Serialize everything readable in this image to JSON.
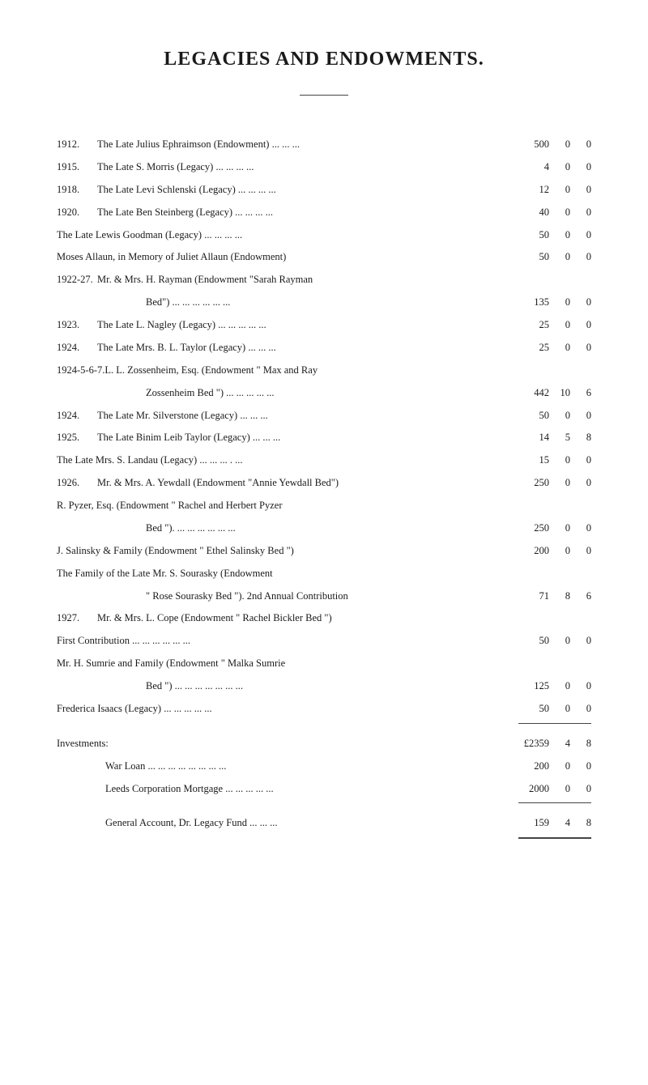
{
  "title": "LEGACIES AND ENDOWMENTS.",
  "entries": [
    {
      "year": "1912.",
      "text": "The Late Julius Ephraimson (Endowment)   ...   ...   ...",
      "l": "500",
      "s": "0",
      "d": "0"
    },
    {
      "year": "1915.",
      "text": "The Late S. Morris (Legacy)               ...   ...   ...   ...",
      "l": "4",
      "s": "0",
      "d": "0"
    },
    {
      "year": "1918.",
      "text": "The Late Levi Schlenski (Legacy)    ...   ...   ...   ...",
      "l": "12",
      "s": "0",
      "d": "0"
    },
    {
      "year": "1920.",
      "text": "The Late Ben Steinberg (Legacy)     ...   ...   ...   ...",
      "l": "40",
      "s": "0",
      "d": "0"
    },
    {
      "year": "",
      "text": "The Late Lewis Goodman (Legacy)    ...   ...   ...   ...",
      "l": "50",
      "s": "0",
      "d": "0"
    },
    {
      "year": "",
      "text": "Moses Allaun, in Memory of Juliet Allaun (Endowment)",
      "l": "50",
      "s": "0",
      "d": "0"
    },
    {
      "year": "1922-27.",
      "text": "Mr. & Mrs. H. Rayman (Endowment \"Sarah Rayman",
      "noamt": true
    },
    {
      "year": "",
      "text": "Bed\")                   ...   ...   ...   ...   ...   ...",
      "cont": true,
      "l": "135",
      "s": "0",
      "d": "0"
    },
    {
      "year": "1923.",
      "text": "The Late L. Nagley (Legacy)    ...   ...   ...   ...   ...",
      "l": "25",
      "s": "0",
      "d": "0"
    },
    {
      "year": "1924.",
      "text": "The Late Mrs. B. L. Taylor (Legacy)         ...   ...   ...",
      "l": "25",
      "s": "0",
      "d": "0"
    },
    {
      "year": "1924-5-6-7.",
      "text": "L. L. Zossenheim, Esq. (Endowment \" Max and Ray",
      "noamt": true
    },
    {
      "year": "",
      "text": "Zossenheim Bed \")   ...   ...   ...   ...   ...",
      "cont": true,
      "l": "442",
      "s": "10",
      "d": "6"
    },
    {
      "year": "1924.",
      "text": "The Late Mr. Silverstone (Legacy)           ...   ...   ...",
      "l": "50",
      "s": "0",
      "d": "0"
    },
    {
      "year": "1925.",
      "text": "The Late Binim Leib Taylor (Legacy)    ...   ...   ...",
      "l": "14",
      "s": "5",
      "d": "8"
    },
    {
      "year": "",
      "text": "The Late Mrs. S. Landau (Legacy)   ...   ...   ... .   ...",
      "l": "15",
      "s": "0",
      "d": "0"
    },
    {
      "year": "1926.",
      "text": "Mr. & Mrs. A. Yewdall (Endowment \"Annie Yewdall Bed\")",
      "l": "250",
      "s": "0",
      "d": "0"
    },
    {
      "year": "",
      "text": "R. Pyzer, Esq. (Endowment \" Rachel and Herbert Pyzer",
      "noamt": true
    },
    {
      "year": "",
      "text": "Bed \").             ...   ...   ...   ...   ...   ...",
      "cont": true,
      "l": "250",
      "s": "0",
      "d": "0"
    },
    {
      "year": "",
      "text": "J. Salinsky & Family (Endowment \" Ethel Salinsky Bed \")",
      "l": "200",
      "s": "0",
      "d": "0"
    },
    {
      "year": "",
      "text": "The Family of the Late Mr. S. Sourasky (Endowment",
      "noamt": true
    },
    {
      "year": "",
      "text": "\" Rose Sourasky Bed \"). 2nd Annual Contribution",
      "cont": true,
      "l": "71",
      "s": "8",
      "d": "6"
    },
    {
      "year": "1927.",
      "text": "Mr. & Mrs. L. Cope (Endowment \" Rachel Bickler Bed \")",
      "noamt": true
    },
    {
      "year": "",
      "text": "First Contribution           ...   ...   ...   ...   ...   ...",
      "l": "50",
      "s": "0",
      "d": "0"
    },
    {
      "year": "",
      "text": "Mr. H. Sumrie and Family (Endowment \" Malka Sumrie",
      "noamt": true
    },
    {
      "year": "",
      "text": "Bed \")          ...   ...   ...   ...   ...   ...   ...",
      "cont": true,
      "l": "125",
      "s": "0",
      "d": "0"
    },
    {
      "year": "",
      "text": "Frederica Isaacs (Legacy)           ...   ...   ...   ...   ...",
      "l": "50",
      "s": "0",
      "d": "0"
    }
  ],
  "total": {
    "label": "",
    "l": "£2359",
    "s": "4",
    "d": "8"
  },
  "investments_label": "Investments:",
  "investments": [
    {
      "text": "War Loan     ...   ...   ...   ...   ...   ...   ...   ...",
      "l": "200",
      "s": "0",
      "d": "0"
    },
    {
      "text": "Leeds Corporation Mortgage       ...   ...   ...   ...   ...",
      "l": "2000",
      "s": "0",
      "d": "0"
    }
  ],
  "general_account": {
    "text": "General Account, Dr. Legacy Fund           ...   ...   ...",
    "l": "159",
    "s": "4",
    "d": "8"
  },
  "colors": {
    "background": "#ffffff",
    "text": "#1a1a1a",
    "rule": "#444444"
  },
  "typography": {
    "title_fontsize_pt": 18,
    "body_fontsize_pt": 9.5,
    "font_family": "serif"
  }
}
